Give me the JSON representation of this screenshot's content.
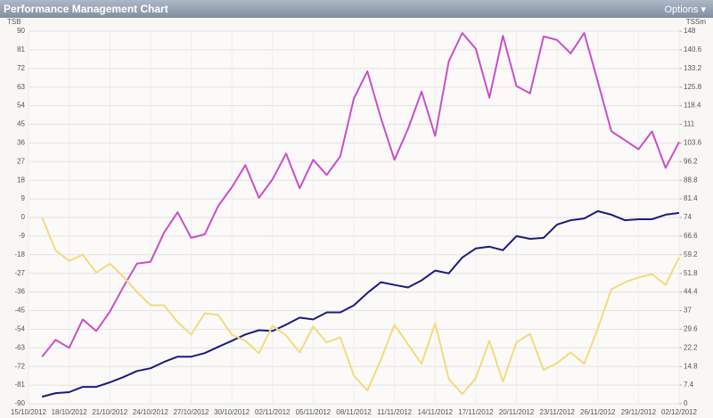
{
  "header": {
    "title": "Performance Management Chart",
    "options": "Options"
  },
  "chart_data": {
    "type": "line",
    "ylabel": "TSB",
    "y2label": "TSSm",
    "categories": [
      "15/10/2012",
      null,
      null,
      "18/10/2012",
      null,
      null,
      "21/10/2012",
      null,
      null,
      "24/10/2012",
      null,
      null,
      "27/10/2012",
      null,
      null,
      "30/10/2012",
      null,
      null,
      "02/11/2012",
      null,
      null,
      "05/11/2012",
      null,
      null,
      "08/11/2012",
      null,
      null,
      "11/11/2012",
      null,
      null,
      "14/11/2012",
      null,
      null,
      "17/11/2012",
      null,
      null,
      "20/11/2012",
      null,
      null,
      "23/11/2012",
      null,
      null,
      "26/11/2012",
      null,
      null,
      "29/11/2012",
      null,
      null,
      "02/12/2012"
    ],
    "ylim": [
      -90,
      90
    ],
    "yticks": [
      90,
      81,
      72,
      63,
      54,
      45,
      36,
      27,
      18,
      9,
      0,
      -9,
      -18,
      -27,
      -36,
      -45,
      -54,
      -63,
      -72,
      -81,
      -90
    ],
    "y2lim": [
      0,
      148
    ],
    "y2ticks": [
      148,
      140.6,
      133.2,
      125.8,
      118.4,
      111,
      103.6,
      96.2,
      88.8,
      81.4,
      74,
      66.6,
      59.2,
      51.8,
      44.4,
      37,
      29.6,
      22.2,
      14.8,
      7.4,
      0
    ],
    "grid": true,
    "series": [
      {
        "color": "#c94fc9",
        "axis": "y2",
        "values": [
          null,
          18.7,
          25.4,
          22.2,
          33.5,
          28.9,
          36.6,
          46.5,
          55.7,
          56.4,
          68.0,
          76.1,
          65.9,
          67.3,
          78.6,
          86.0,
          94.8,
          81.8,
          89.2,
          99.4,
          85.6,
          96.9,
          90.9,
          98.3,
          121.2,
          132.1,
          113.5,
          96.9,
          109.2,
          124.0,
          106.4,
          136.0,
          147.3,
          141.0,
          121.6,
          146.2,
          126.2,
          123.3,
          145.9,
          144.5,
          139.2,
          147.3,
          127.9,
          108.2,
          104.7,
          101.1,
          108.2,
          93.7,
          104.0
        ]
      },
      {
        "color": "#1b1b7e",
        "axis": "y2",
        "values": [
          null,
          2.8,
          4.2,
          4.6,
          6.7,
          6.7,
          8.5,
          10.6,
          13.0,
          14.1,
          16.6,
          18.7,
          18.7,
          20.1,
          22.6,
          25.0,
          27.5,
          29.2,
          28.9,
          31.4,
          34.2,
          33.5,
          36.3,
          36.3,
          39.1,
          44.0,
          48.3,
          47.2,
          46.2,
          49.0,
          52.9,
          51.8,
          58.1,
          61.7,
          62.4,
          61.0,
          66.6,
          65.5,
          65.9,
          71.2,
          72.9,
          73.6,
          76.5,
          75.1,
          72.9,
          73.3,
          73.3,
          75.1,
          75.8
        ]
      },
      {
        "color": "#f3da7e",
        "axis": "y",
        "values": [
          null,
          0,
          -15.9,
          -21.0,
          -18.0,
          -26.6,
          -22.3,
          -28.7,
          -36.0,
          -42.4,
          -42.4,
          -50.6,
          -56.6,
          -46.3,
          -47.1,
          -56.6,
          -59.6,
          -65.6,
          -52.3,
          -57.0,
          -65.2,
          -52.7,
          -60.4,
          -57.9,
          -76.4,
          -83.6,
          -68.6,
          -51.9,
          -61.3,
          -70.7,
          -51.0,
          -78.0,
          -85.3,
          -77.6,
          -59.6,
          -79.3,
          -60.4,
          -56.2,
          -73.7,
          -70.3,
          -65.2,
          -70.7,
          -53.6,
          -34.7,
          -31.3,
          -29.0,
          -27.4,
          -32.6,
          -19.3
        ]
      }
    ]
  }
}
